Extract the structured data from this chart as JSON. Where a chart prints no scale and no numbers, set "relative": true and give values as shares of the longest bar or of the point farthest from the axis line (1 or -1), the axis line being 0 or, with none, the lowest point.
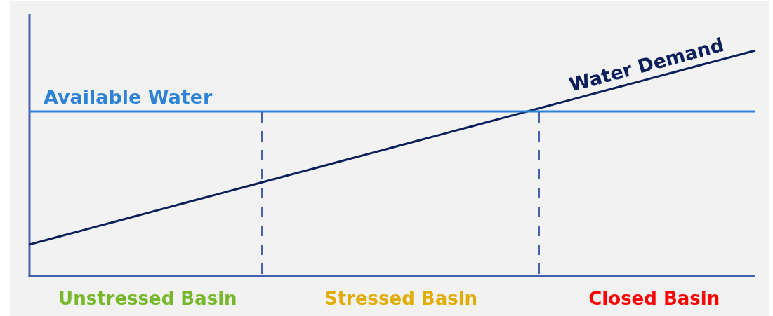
{
  "chart_data": {
    "type": "line",
    "relative": true,
    "categories": [
      null,
      null,
      null,
      null,
      null,
      null,
      null,
      "Unstressed Basin",
      null,
      null,
      null,
      null,
      null,
      null,
      null,
      null,
      null,
      null,
      null,
      null,
      null,
      null,
      "Stressed Basin",
      null,
      null,
      null,
      null,
      null,
      null,
      null,
      null,
      null,
      null,
      null,
      null,
      null,
      null,
      "Closed Basin",
      null,
      null,
      null,
      null,
      null,
      null
    ],
    "series": [
      {
        "name": "Available Water",
        "color": "#2e83d9",
        "values": [
          0.73,
          0.73,
          0.73,
          0.73,
          0.73,
          0.73,
          0.73,
          0.73,
          0.73,
          0.73,
          0.73,
          0.73,
          0.73,
          0.73,
          0.73,
          0.73,
          0.73,
          0.73,
          0.73,
          0.73,
          0.73,
          0.73,
          0.73,
          0.73,
          0.73,
          0.73,
          0.73,
          0.73,
          0.73,
          0.73,
          0.73,
          0.73,
          0.73,
          0.73,
          0.73,
          0.73,
          0.73,
          0.73,
          0.73,
          0.73,
          0.73,
          0.73,
          0.73,
          0.73
        ]
      },
      {
        "name": "Water Demand",
        "color": "#0a1f5c",
        "values": [
          0.14,
          0.16,
          0.18,
          0.2,
          0.22,
          0.24,
          0.26,
          0.28,
          0.3,
          0.32,
          0.34,
          0.36,
          0.38,
          0.4,
          0.42,
          0.44,
          0.46,
          0.48,
          0.5,
          0.52,
          0.54,
          0.56,
          0.58,
          0.6,
          0.62,
          0.64,
          0.66,
          0.68,
          0.7,
          0.72,
          0.74,
          0.76,
          0.78,
          0.8,
          0.82,
          0.84,
          0.86,
          0.88,
          0.9,
          0.92,
          0.94,
          0.96,
          0.98,
          1
        ]
      }
    ],
    "legend": false,
    "grid": false
  }
}
